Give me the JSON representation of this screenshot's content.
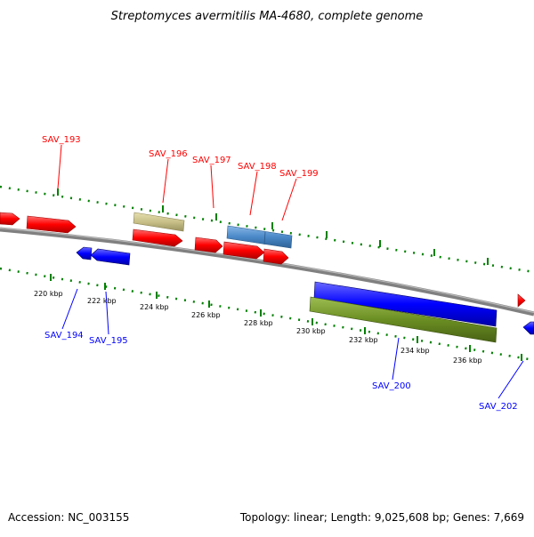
{
  "title": "Streptomyces avermitilis MA-4680, complete genome",
  "footer": {
    "accession": "Accession: NC_003155",
    "stats": "Topology: linear; Length: 9,025,608 bp; Genes: 7,669"
  },
  "colors": {
    "forward_gene": "#ff0000",
    "reverse_gene": "#0000ff",
    "forward_label": "#ff0000",
    "reverse_label": "#0000ff",
    "tick": "#008000",
    "backbone": "#808080",
    "khaki_feature": "#c8c088",
    "steel_feature": "#4a88c8",
    "olive_feature": "#6b8e23"
  },
  "scale": {
    "ticks": [
      {
        "kbp": 220,
        "label": "220 kbp"
      },
      {
        "kbp": 222,
        "label": "222 kbp"
      },
      {
        "kbp": 224,
        "label": "224 kbp"
      },
      {
        "kbp": 226,
        "label": "226 kbp"
      },
      {
        "kbp": 228,
        "label": "228 kbp"
      },
      {
        "kbp": 230,
        "label": "230 kbp"
      },
      {
        "kbp": 232,
        "label": "232 kbp"
      },
      {
        "kbp": 234,
        "label": "234 kbp"
      },
      {
        "kbp": 236,
        "label": "236 kbp"
      }
    ]
  },
  "labels": {
    "forward": [
      "SAV_193",
      "SAV_196",
      "SAV_197",
      "SAV_198",
      "SAV_199"
    ],
    "reverse": [
      "SAV_194",
      "SAV_195",
      "SAV_200",
      "SAV_202"
    ]
  }
}
